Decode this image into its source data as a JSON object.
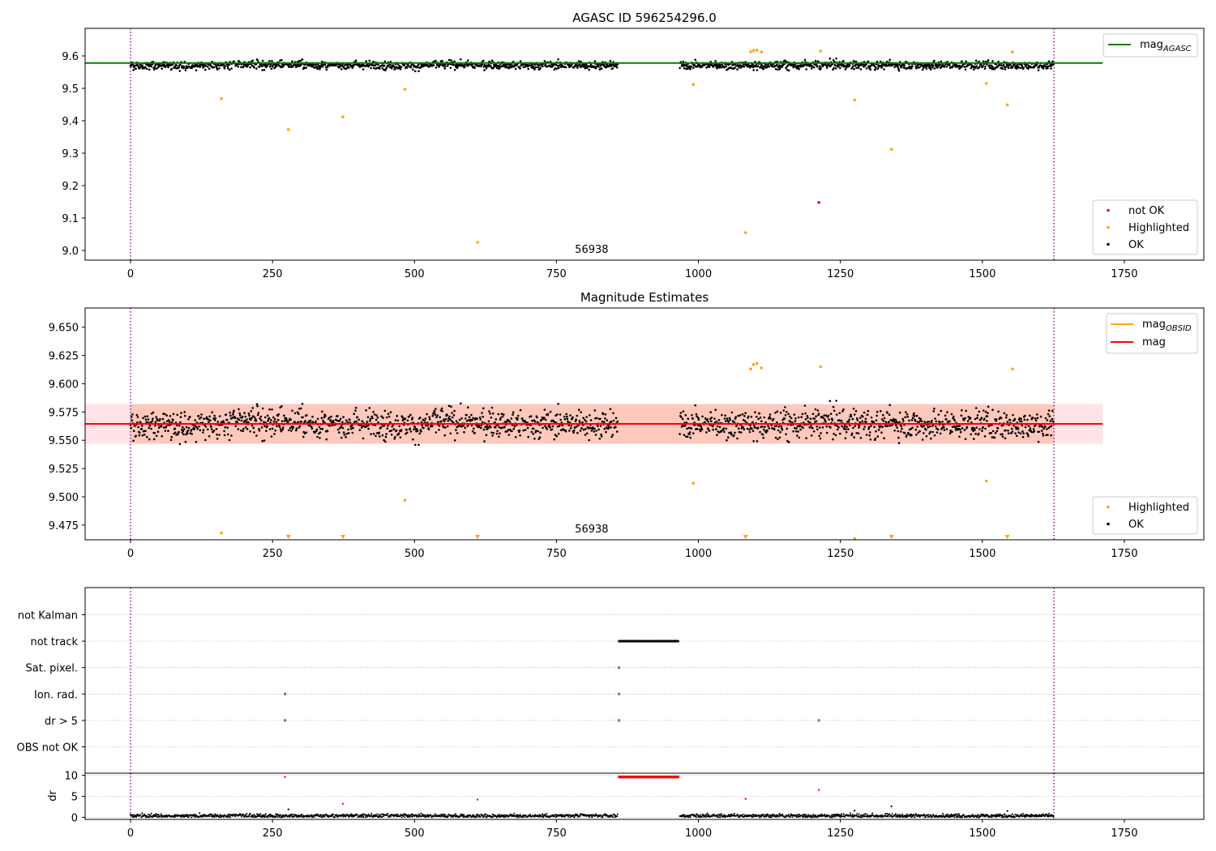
{
  "colors": {
    "ok": "#000000",
    "highlighted": "#ffa500",
    "not_ok": "#ff0000",
    "mag_agasc": "#008000",
    "mag_obsid": "#ffa500",
    "mag": "#ff0000",
    "band_outer": "#ffc0cb",
    "band_inner": "#ffa07a",
    "obs_boundary": "#800080",
    "grid": "#b0b0b0"
  },
  "chart_data": [
    {
      "type": "scatter",
      "title": "AGASC ID 596254296.0",
      "xlim": [
        -80,
        1890
      ],
      "ylim": [
        8.97,
        9.685
      ],
      "xticks": [
        0,
        250,
        500,
        750,
        1000,
        1250,
        1500,
        1750
      ],
      "yticks": [
        "9.0",
        "9.1",
        "9.2",
        "9.3",
        "9.4",
        "9.5",
        "9.6"
      ],
      "obsid_boundaries": [
        0,
        1626
      ],
      "obsid_label": "56938",
      "obsid_label_x": 812,
      "reference_lines": [
        {
          "name": "mag_AGASC",
          "y": 9.578,
          "x_range": [
            -80,
            1712
          ]
        }
      ],
      "ok_mean": 9.572,
      "ok_gaps": [
        [
          858,
          967
        ]
      ],
      "highlighted": [
        [
          160,
          9.468
        ],
        [
          278,
          9.373
        ],
        [
          374,
          9.412
        ],
        [
          483,
          9.497
        ],
        [
          611,
          9.025
        ],
        [
          991,
          9.512
        ],
        [
          1083,
          9.055
        ],
        [
          1092,
          9.613
        ],
        [
          1097,
          9.617
        ],
        [
          1103,
          9.618
        ],
        [
          1111,
          9.612
        ],
        [
          1215,
          9.615
        ],
        [
          1275,
          9.464
        ],
        [
          1340,
          9.312
        ],
        [
          1507,
          9.515
        ],
        [
          1544,
          9.449
        ],
        [
          1553,
          9.612
        ]
      ],
      "not_ok": [
        [
          1212,
          9.148
        ]
      ],
      "legend": {
        "upper": [
          "mag_AGASC"
        ],
        "lower": [
          "not OK",
          "Highlighted",
          "OK"
        ]
      }
    },
    {
      "type": "scatter",
      "title": "Magnitude Estimates",
      "xlim": [
        -80,
        1890
      ],
      "ylim": [
        9.462,
        9.667
      ],
      "xticks": [
        0,
        250,
        500,
        750,
        1000,
        1250,
        1500,
        1750
      ],
      "yticks": [
        "9.475",
        "9.500",
        "9.525",
        "9.550",
        "9.575",
        "9.600",
        "9.625",
        "9.650"
      ],
      "obsid_boundaries": [
        0,
        1626
      ],
      "obsid_label": "56938",
      "obsid_label_x": 812,
      "reference_lines": [
        {
          "name": "mag_OBSID",
          "y": 9.5645,
          "x_range": [
            -80,
            1712
          ]
        },
        {
          "name": "mag",
          "y": 9.5645,
          "x_range": [
            -80,
            1712
          ]
        }
      ],
      "bands": [
        {
          "name": "outer",
          "y_range": [
            9.547,
            9.582
          ],
          "x_range": [
            -80,
            1712
          ]
        },
        {
          "name": "inner",
          "y_range": [
            9.547,
            9.582
          ],
          "x_range": [
            0,
            1626
          ]
        }
      ],
      "ok_mean": 9.565,
      "ok_gaps": [
        [
          858,
          967
        ]
      ],
      "highlighted": [
        [
          160,
          9.468
        ],
        [
          483,
          9.497
        ],
        [
          991,
          9.512
        ],
        [
          1092,
          9.613
        ],
        [
          1097,
          9.617
        ],
        [
          1103,
          9.618
        ],
        [
          1111,
          9.614
        ],
        [
          1215,
          9.615
        ],
        [
          1275,
          9.463
        ],
        [
          1507,
          9.514
        ],
        [
          1553,
          9.613
        ]
      ],
      "below_range_markers": [
        278,
        374,
        611,
        1083,
        1340,
        1544
      ],
      "legend": {
        "upper": [
          "mag_OBSID",
          "mag"
        ],
        "lower": [
          "Highlighted",
          "OK"
        ]
      }
    },
    {
      "type": "scatter",
      "title": "",
      "categories": [
        "not Kalman",
        "not track",
        "Sat. pixel.",
        "Ion. rad.",
        "dr > 5",
        "OBS not OK"
      ],
      "xlim": [
        -80,
        1890
      ],
      "xticks": [
        0,
        250,
        500,
        750,
        1000,
        1250,
        1500,
        1750
      ],
      "obsid_boundaries": [
        0,
        1626
      ],
      "flags": [
        {
          "category": "not track",
          "x_range": [
            860,
            965
          ]
        },
        {
          "category": "Sat. pixel.",
          "x": [
            860
          ]
        },
        {
          "category": "Ion. rad.",
          "x": [
            272,
            860
          ]
        },
        {
          "category": "dr > 5",
          "x": [
            272,
            860,
            1212
          ]
        }
      ]
    },
    {
      "type": "scatter",
      "title": "",
      "ylabel": "dr",
      "xlim": [
        -80,
        1890
      ],
      "ylim": [
        -0.5,
        10.5
      ],
      "xticks": [
        0,
        250,
        500,
        750,
        1000,
        1250,
        1500,
        1750
      ],
      "yticks": [
        0,
        5,
        10
      ],
      "obsid_boundaries": [
        0,
        1626
      ],
      "ok_gaps": [
        [
          858,
          967
        ]
      ],
      "red_points": [
        [
          272,
          9.6
        ],
        [
          374,
          3.2
        ],
        [
          611,
          4.2
        ],
        [
          1083,
          4.4
        ],
        [
          1212,
          6.5
        ]
      ],
      "red_run": {
        "x_range": [
          860,
          965
        ],
        "y": 9.6
      },
      "black_points": [
        [
          278,
          1.9
        ],
        [
          1275,
          1.6
        ],
        [
          1340,
          2.6
        ],
        [
          1544,
          1.5
        ]
      ]
    }
  ]
}
